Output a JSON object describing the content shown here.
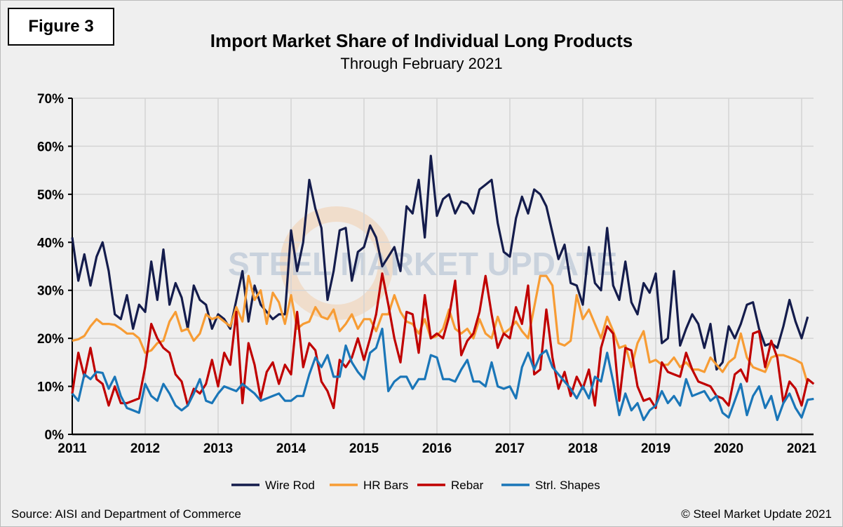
{
  "figure_label": "Figure 3",
  "source": "Source: AISI and Department of Commerce",
  "copyright": "© Steel Market Update 2021",
  "watermark": "STEEL MARKET UPDATE part of the CRU Group",
  "chart_data": {
    "type": "line",
    "title": "Import Market Share of Individual Long Products",
    "subtitle": "Through February 2021",
    "x_start": "2011-01",
    "x_end": "2021-02",
    "frequency": "monthly",
    "xticks": [
      "2011",
      "2012",
      "2013",
      "2014",
      "2015",
      "2016",
      "2017",
      "2018",
      "2019",
      "2020",
      "2021"
    ],
    "yticks": [
      "0%",
      "10%",
      "20%",
      "30%",
      "40%",
      "50%",
      "60%",
      "70%"
    ],
    "ylim": [
      0,
      70
    ],
    "grid": true,
    "legend": "bottom",
    "series": [
      {
        "name": "Wire Rod",
        "color": "#141c4c",
        "values": [
          41,
          32,
          37.5,
          31,
          37,
          40,
          34,
          25,
          24,
          29,
          22,
          27,
          25.5,
          36,
          28,
          38.5,
          27,
          31.5,
          28.5,
          22,
          31,
          28,
          27,
          22,
          25,
          24,
          22,
          28,
          34,
          23.5,
          31,
          27,
          25.5,
          24,
          25,
          25,
          42.5,
          34,
          40,
          53,
          47,
          43,
          28,
          34,
          42.5,
          43,
          32,
          38,
          39,
          43.5,
          41,
          35,
          37,
          39,
          34,
          47.5,
          46,
          53,
          41,
          58,
          45.5,
          49,
          50,
          46,
          48.5,
          48,
          46,
          51,
          52,
          53,
          44,
          38,
          37,
          45,
          49.5,
          46,
          51,
          50,
          47.5,
          42,
          36.5,
          39.5,
          31.5,
          31,
          27,
          39,
          31.5,
          30,
          43,
          31,
          28,
          36,
          27.5,
          25,
          31.5,
          29.5,
          33.5,
          19,
          20,
          34,
          18.5,
          22,
          25,
          23,
          18,
          23,
          13.5,
          15,
          22.5,
          20,
          23,
          27,
          27.5,
          22,
          18.5,
          19,
          18,
          22.5,
          28,
          23.5,
          20,
          24.5
        ]
      },
      {
        "name": "HR Bars",
        "color": "#f79c34",
        "values": [
          19.5,
          19.8,
          20.5,
          22.5,
          24,
          23,
          23,
          22.8,
          22,
          21,
          21,
          20,
          17,
          17.5,
          19,
          19.5,
          23.5,
          25.5,
          21.5,
          22,
          19.5,
          21,
          25,
          24,
          24.5,
          23.5,
          22.5,
          26.5,
          23.5,
          33,
          28,
          30,
          23,
          29.5,
          27.5,
          23,
          29,
          22,
          23,
          23.5,
          26.5,
          24.5,
          24,
          26,
          21.5,
          23,
          25,
          22,
          24,
          24,
          21.5,
          25,
          25,
          29,
          25.5,
          23.5,
          23,
          21,
          24,
          20,
          20.5,
          22,
          26,
          22,
          21,
          22,
          20,
          24,
          21,
          20,
          24.5,
          21,
          22,
          23.5,
          21.5,
          20,
          26.5,
          33,
          33,
          31,
          19,
          18.5,
          19.5,
          29,
          24,
          26,
          23,
          20,
          24.5,
          21.5,
          18,
          18.5,
          14,
          19,
          21.5,
          15,
          15.5,
          14.5,
          14.5,
          16,
          14,
          15,
          13.5,
          13.5,
          13,
          16,
          14.5,
          13,
          15,
          16,
          21,
          16,
          14,
          13.5,
          13,
          16,
          16.5,
          16.5,
          16,
          15.5,
          14.8,
          10.5
        ]
      },
      {
        "name": "Rebar",
        "color": "#c00000",
        "values": [
          8.5,
          17,
          12,
          18,
          11.5,
          10.5,
          6,
          10,
          6.5,
          6.5,
          7,
          7.5,
          14,
          23,
          20,
          18,
          17,
          12.5,
          11,
          6,
          9.5,
          8.5,
          10.5,
          15.5,
          10,
          17,
          14.5,
          25.5,
          6.5,
          19,
          14.5,
          7.5,
          13,
          15,
          10.5,
          14.5,
          12.5,
          25.5,
          14,
          19,
          17.5,
          11,
          9,
          5.5,
          15.5,
          14,
          16,
          20,
          15.5,
          20,
          25,
          33.5,
          27,
          20,
          15,
          25.5,
          25,
          17,
          29,
          20,
          21,
          20,
          24.5,
          32,
          16.5,
          19.5,
          21,
          25.5,
          33,
          25,
          18,
          21,
          20,
          26.5,
          23,
          31,
          12.5,
          13.5,
          26,
          16,
          9.5,
          13,
          8,
          12,
          9.5,
          13.5,
          6,
          18,
          22.5,
          21,
          7,
          18,
          17.5,
          10,
          7,
          7.5,
          5.5,
          15,
          13,
          12.5,
          12,
          17,
          13.5,
          11,
          10.5,
          10,
          8,
          7.5,
          6,
          12.5,
          13.5,
          11,
          21,
          21.5,
          14,
          19.5,
          16,
          6.5,
          11,
          9.5,
          6,
          11.5,
          10.5
        ]
      },
      {
        "name": "Strl. Shapes",
        "color": "#1a76b8",
        "values": [
          8.5,
          7,
          12.5,
          11.5,
          13,
          12.8,
          9.5,
          12,
          8,
          5.5,
          5,
          4.5,
          10.5,
          8,
          7,
          10.5,
          8.5,
          6,
          5,
          6,
          8.5,
          11.5,
          7,
          6.5,
          8.5,
          10,
          9.5,
          9,
          10.5,
          9.5,
          8.5,
          7,
          7.5,
          8,
          8.5,
          7,
          7,
          8,
          8,
          12.5,
          16,
          14,
          16.5,
          12,
          12,
          18.5,
          15,
          13,
          11.5,
          17,
          18,
          22,
          9,
          11,
          12,
          12,
          9.5,
          11.5,
          11.5,
          16.5,
          16,
          11.5,
          11.5,
          11,
          13.5,
          15.5,
          11,
          11,
          10,
          15,
          10,
          9.5,
          10,
          7.5,
          14,
          17,
          13.5,
          16.5,
          17.5,
          14,
          12.5,
          11,
          9.5,
          7.5,
          10,
          7.5,
          12,
          11,
          17,
          11,
          4,
          8.5,
          5,
          6.5,
          3,
          5,
          6,
          9,
          6.5,
          8,
          6,
          11.5,
          8,
          8.5,
          9,
          7,
          8,
          4.5,
          3.5,
          7,
          10.5,
          4,
          8,
          10,
          5.5,
          8,
          3,
          6.5,
          8.5,
          5.5,
          3.5,
          7.2,
          7.4
        ]
      }
    ]
  }
}
